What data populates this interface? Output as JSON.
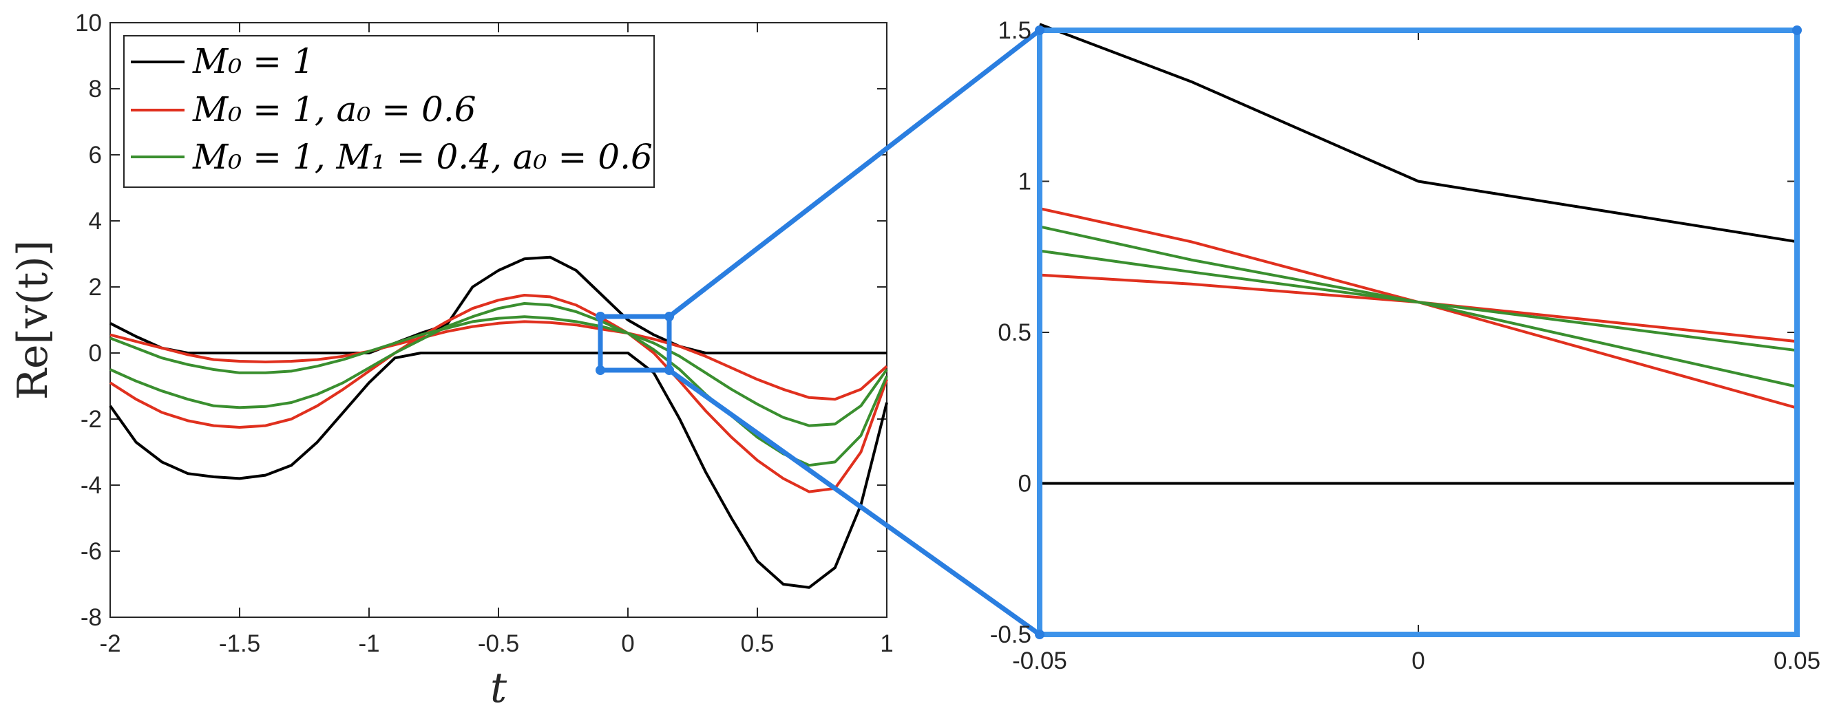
{
  "colors": {
    "black": "#000000",
    "red": "#e0301e",
    "green": "#3a8f2f",
    "zoom": "#2a7ee0"
  },
  "chart_data": [
    {
      "type": "line",
      "title": "",
      "xlabel": "t",
      "ylabel": "Re[v(t)]",
      "xlim": [
        -2,
        1
      ],
      "ylim": [
        -8,
        10
      ],
      "xticks": [
        "-2",
        "-1.5",
        "-1",
        "-0.5",
        "0",
        "0.5",
        "1"
      ],
      "yticks": [
        "-8",
        "-6",
        "-4",
        "-2",
        "0",
        "2",
        "4",
        "6",
        "8",
        "10"
      ],
      "legend": {
        "placement": "top-left",
        "entries": [
          {
            "label": "M₀ = 1",
            "color": "#000000"
          },
          {
            "label": "M₀ = 1, a₀ = 0.6",
            "color": "#e0301e"
          },
          {
            "label": "M₀ = 1, M₁ = 0.4, a₀ = 0.6",
            "color": "#3a8f2f"
          }
        ]
      },
      "x": [
        -2,
        -1.9,
        -1.8,
        -1.7,
        -1.6,
        -1.5,
        -1.4,
        -1.3,
        -1.2,
        -1.1,
        -1,
        -0.9,
        -0.8,
        -0.7,
        -0.6,
        -0.5,
        -0.4,
        -0.3,
        -0.2,
        -0.1,
        0,
        0.1,
        0.2,
        0.3,
        0.4,
        0.5,
        0.6,
        0.7,
        0.8,
        0.9,
        1
      ],
      "series": [
        {
          "color": "#000000",
          "values": [
            0.9,
            0.5,
            0.15,
            0,
            0,
            0,
            0,
            0,
            0,
            0,
            0,
            0.3,
            0.6,
            0.85,
            2.0,
            2.5,
            2.85,
            2.9,
            2.5,
            1.75,
            1.0,
            0.55,
            0.2,
            0,
            0,
            0,
            0,
            0,
            0,
            0,
            0
          ]
        },
        {
          "color": "#000000",
          "values": [
            -1.6,
            -2.7,
            -3.3,
            -3.65,
            -3.75,
            -3.8,
            -3.7,
            -3.4,
            -2.7,
            -1.8,
            -0.9,
            -0.15,
            0,
            0,
            0,
            0,
            0,
            0,
            0,
            0,
            0,
            -0.6,
            -2.0,
            -3.6,
            -5.0,
            -6.3,
            -7.0,
            -7.1,
            -6.5,
            -4.6,
            -1.5
          ]
        },
        {
          "color": "#e0301e",
          "values": [
            0.55,
            0.35,
            0.15,
            -0.05,
            -0.2,
            -0.25,
            -0.27,
            -0.25,
            -0.2,
            -0.1,
            0.05,
            0.25,
            0.45,
            0.65,
            0.8,
            0.9,
            0.95,
            0.92,
            0.85,
            0.72,
            0.6,
            0.42,
            0.2,
            -0.1,
            -0.45,
            -0.8,
            -1.1,
            -1.35,
            -1.4,
            -1.1,
            -0.4
          ]
        },
        {
          "color": "#e0301e",
          "values": [
            -0.9,
            -1.4,
            -1.8,
            -2.05,
            -2.2,
            -2.25,
            -2.2,
            -2.0,
            -1.6,
            -1.1,
            -0.55,
            0,
            0.5,
            0.95,
            1.35,
            1.6,
            1.75,
            1.7,
            1.45,
            1.05,
            0.6,
            0,
            -0.85,
            -1.75,
            -2.55,
            -3.25,
            -3.8,
            -4.2,
            -4.1,
            -3.0,
            -0.8
          ]
        },
        {
          "color": "#3a8f2f",
          "values": [
            -0.5,
            -0.85,
            -1.15,
            -1.4,
            -1.6,
            -1.65,
            -1.62,
            -1.5,
            -1.25,
            -0.9,
            -0.45,
            0,
            0.4,
            0.8,
            1.1,
            1.35,
            1.5,
            1.45,
            1.25,
            0.95,
            0.6,
            0.1,
            -0.5,
            -1.25,
            -1.9,
            -2.55,
            -3.05,
            -3.4,
            -3.3,
            -2.5,
            -0.7
          ]
        },
        {
          "color": "#3a8f2f",
          "values": [
            0.45,
            0.15,
            -0.15,
            -0.35,
            -0.5,
            -0.6,
            -0.6,
            -0.55,
            -0.4,
            -0.2,
            0.05,
            0.3,
            0.55,
            0.75,
            0.95,
            1.05,
            1.1,
            1.05,
            0.95,
            0.8,
            0.6,
            0.3,
            -0.1,
            -0.6,
            -1.1,
            -1.55,
            -1.95,
            -2.2,
            -2.15,
            -1.6,
            -0.5
          ]
        }
      ]
    },
    {
      "type": "line",
      "title": "",
      "xlim": [
        -0.05,
        0.05
      ],
      "ylim": [
        -0.5,
        1.5
      ],
      "xticks": [
        "-0.05",
        "0",
        "0.05"
      ],
      "yticks": [
        "-0.5",
        "0",
        "0.5",
        "1",
        "1.5"
      ],
      "x": [
        -0.05,
        -0.03,
        0,
        0.05
      ],
      "series": [
        {
          "color": "#000000",
          "values": [
            1.52,
            1.33,
            1.0,
            0.8
          ]
        },
        {
          "color": "#000000",
          "values": [
            0,
            0,
            0,
            0
          ]
        },
        {
          "color": "#e0301e",
          "values": [
            0.91,
            0.8,
            0.6,
            0.25
          ]
        },
        {
          "color": "#e0301e",
          "values": [
            0.69,
            0.66,
            0.6,
            0.47
          ]
        },
        {
          "color": "#3a8f2f",
          "values": [
            0.85,
            0.74,
            0.6,
            0.32
          ]
        },
        {
          "color": "#3a8f2f",
          "values": [
            0.77,
            0.7,
            0.6,
            0.44
          ]
        }
      ]
    }
  ]
}
